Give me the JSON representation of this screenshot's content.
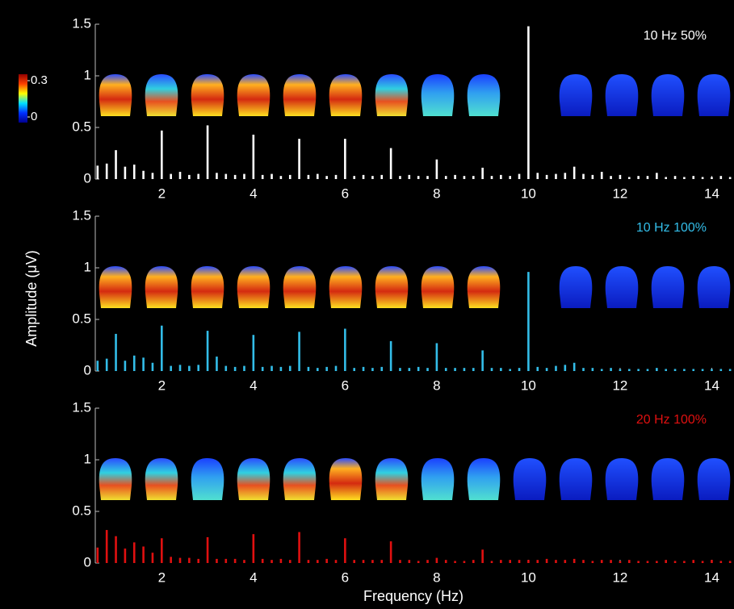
{
  "chart_data": [
    {
      "type": "bar",
      "annotation": "10 Hz 50%",
      "color": "#ffffff",
      "colorbar": {
        "clim": [
          0,
          0.3
        ],
        "ticks": [
          0,
          0.3
        ]
      },
      "x": [
        0.6,
        0.8,
        1.0,
        1.2,
        1.4,
        1.6,
        1.8,
        2.0,
        2.2,
        2.4,
        2.6,
        2.8,
        3.0,
        3.2,
        3.4,
        3.6,
        3.8,
        4.0,
        4.2,
        4.4,
        4.6,
        4.8,
        5.0,
        5.2,
        5.4,
        5.6,
        5.8,
        6.0,
        6.2,
        6.4,
        6.6,
        6.8,
        7.0,
        7.2,
        7.4,
        7.6,
        7.8,
        8.0,
        8.2,
        8.4,
        8.6,
        8.8,
        9.0,
        9.2,
        9.4,
        9.6,
        9.8,
        10.0,
        10.2,
        10.4,
        10.6,
        10.8,
        11.0,
        11.2,
        11.4,
        11.6,
        11.8,
        12.0,
        12.2,
        12.4,
        12.6,
        12.8,
        13.0,
        13.2,
        13.4,
        13.6,
        13.8,
        14.0,
        14.2,
        14.4
      ],
      "values": [
        0.13,
        0.15,
        0.28,
        0.12,
        0.14,
        0.08,
        0.06,
        0.47,
        0.05,
        0.07,
        0.04,
        0.05,
        0.52,
        0.06,
        0.05,
        0.04,
        0.05,
        0.43,
        0.04,
        0.05,
        0.03,
        0.04,
        0.39,
        0.04,
        0.05,
        0.03,
        0.04,
        0.39,
        0.03,
        0.04,
        0.03,
        0.04,
        0.3,
        0.03,
        0.04,
        0.03,
        0.03,
        0.19,
        0.03,
        0.04,
        0.03,
        0.03,
        0.11,
        0.03,
        0.04,
        0.03,
        0.05,
        1.48,
        0.06,
        0.04,
        0.05,
        0.06,
        0.12,
        0.05,
        0.04,
        0.07,
        0.03,
        0.04,
        0.02,
        0.03,
        0.03,
        0.06,
        0.02,
        0.03,
        0.02,
        0.03,
        0.02,
        0.02,
        0.03,
        0.02
      ],
      "xlim": [
        0.55,
        14.45
      ],
      "xticks": [
        2,
        4,
        6,
        8,
        10,
        12,
        14
      ],
      "ylim": [
        0,
        1.5
      ],
      "yticks": [
        0,
        0.5,
        1,
        1.5
      ]
    },
    {
      "type": "bar",
      "annotation": "10 Hz 100%",
      "color": "#33bde8",
      "y_label": "Amplitude (μV)",
      "x": [
        0.6,
        0.8,
        1.0,
        1.2,
        1.4,
        1.6,
        1.8,
        2.0,
        2.2,
        2.4,
        2.6,
        2.8,
        3.0,
        3.2,
        3.4,
        3.6,
        3.8,
        4.0,
        4.2,
        4.4,
        4.6,
        4.8,
        5.0,
        5.2,
        5.4,
        5.6,
        5.8,
        6.0,
        6.2,
        6.4,
        6.6,
        6.8,
        7.0,
        7.2,
        7.4,
        7.6,
        7.8,
        8.0,
        8.2,
        8.4,
        8.6,
        8.8,
        9.0,
        9.2,
        9.4,
        9.6,
        9.8,
        10.0,
        10.2,
        10.4,
        10.6,
        10.8,
        11.0,
        11.2,
        11.4,
        11.6,
        11.8,
        12.0,
        12.2,
        12.4,
        12.6,
        12.8,
        13.0,
        13.2,
        13.4,
        13.6,
        13.8,
        14.0,
        14.2,
        14.4
      ],
      "values": [
        0.1,
        0.12,
        0.36,
        0.1,
        0.15,
        0.13,
        0.08,
        0.44,
        0.05,
        0.06,
        0.05,
        0.06,
        0.39,
        0.14,
        0.05,
        0.04,
        0.05,
        0.35,
        0.04,
        0.05,
        0.04,
        0.05,
        0.38,
        0.04,
        0.03,
        0.04,
        0.05,
        0.41,
        0.03,
        0.04,
        0.03,
        0.04,
        0.29,
        0.03,
        0.03,
        0.04,
        0.03,
        0.27,
        0.03,
        0.03,
        0.03,
        0.03,
        0.2,
        0.03,
        0.03,
        0.02,
        0.03,
        0.96,
        0.04,
        0.03,
        0.05,
        0.06,
        0.08,
        0.03,
        0.03,
        0.02,
        0.03,
        0.02,
        0.02,
        0.02,
        0.02,
        0.03,
        0.02,
        0.02,
        0.02,
        0.02,
        0.02,
        0.02,
        0.02,
        0.02
      ],
      "xlim": [
        0.55,
        14.45
      ],
      "xticks": [
        2,
        4,
        6,
        8,
        10,
        12,
        14
      ],
      "ylim": [
        0,
        1.5
      ],
      "yticks": [
        0,
        0.5,
        1,
        1.5
      ]
    },
    {
      "type": "bar",
      "annotation": "20 Hz 100%",
      "color": "#e01010",
      "x_label": "Frequency (Hz)",
      "x": [
        0.6,
        0.8,
        1.0,
        1.2,
        1.4,
        1.6,
        1.8,
        2.0,
        2.2,
        2.4,
        2.6,
        2.8,
        3.0,
        3.2,
        3.4,
        3.6,
        3.8,
        4.0,
        4.2,
        4.4,
        4.6,
        4.8,
        5.0,
        5.2,
        5.4,
        5.6,
        5.8,
        6.0,
        6.2,
        6.4,
        6.6,
        6.8,
        7.0,
        7.2,
        7.4,
        7.6,
        7.8,
        8.0,
        8.2,
        8.4,
        8.6,
        8.8,
        9.0,
        9.2,
        9.4,
        9.6,
        9.8,
        10.0,
        10.2,
        10.4,
        10.6,
        10.8,
        11.0,
        11.2,
        11.4,
        11.6,
        11.8,
        12.0,
        12.2,
        12.4,
        12.6,
        12.8,
        13.0,
        13.2,
        13.4,
        13.6,
        13.8,
        14.0,
        14.2,
        14.4
      ],
      "values": [
        0.15,
        0.32,
        0.26,
        0.14,
        0.2,
        0.16,
        0.1,
        0.24,
        0.06,
        0.05,
        0.05,
        0.04,
        0.25,
        0.04,
        0.04,
        0.04,
        0.03,
        0.28,
        0.04,
        0.03,
        0.04,
        0.03,
        0.3,
        0.03,
        0.03,
        0.04,
        0.03,
        0.24,
        0.03,
        0.03,
        0.03,
        0.03,
        0.21,
        0.03,
        0.03,
        0.02,
        0.03,
        0.05,
        0.03,
        0.02,
        0.02,
        0.03,
        0.13,
        0.02,
        0.03,
        0.03,
        0.03,
        0.03,
        0.03,
        0.04,
        0.03,
        0.03,
        0.04,
        0.03,
        0.02,
        0.03,
        0.03,
        0.02,
        0.03,
        0.02,
        0.02,
        0.02,
        0.03,
        0.02,
        0.02,
        0.03,
        0.02,
        0.03,
        0.02,
        0.02
      ],
      "xlim": [
        0.55,
        14.45
      ],
      "xticks": [
        2,
        4,
        6,
        8,
        10,
        12,
        14
      ],
      "ylim": [
        0,
        1.5
      ],
      "yticks": [
        0,
        0.5,
        1,
        1.5
      ]
    }
  ]
}
